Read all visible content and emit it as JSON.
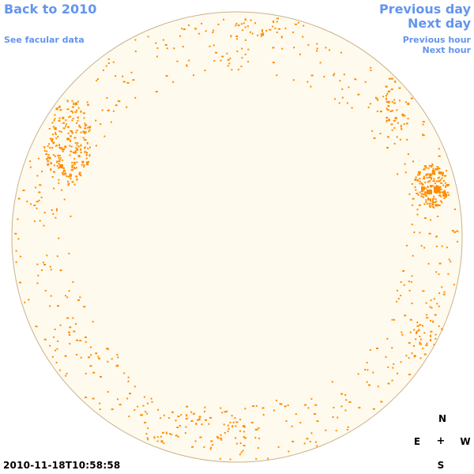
{
  "nav": {
    "back": "Back to 2010",
    "facular": "See facular data",
    "previous_day": "Previous day",
    "next_day": "Next day",
    "previous_hour": "Previous hour",
    "next_hour": "Next hour"
  },
  "timestamp": "2010-11-18T10:58:58",
  "compass": {
    "north": "N",
    "south": "S",
    "east": "E",
    "west": "W",
    "center": "+"
  },
  "colors": {
    "disk_fill": "#fffaee",
    "disk_border": "#c9b38a",
    "facula": "#ff8c00",
    "link": "#6495ed"
  },
  "icons": {
    "compass_center": "crosshair-icon"
  }
}
